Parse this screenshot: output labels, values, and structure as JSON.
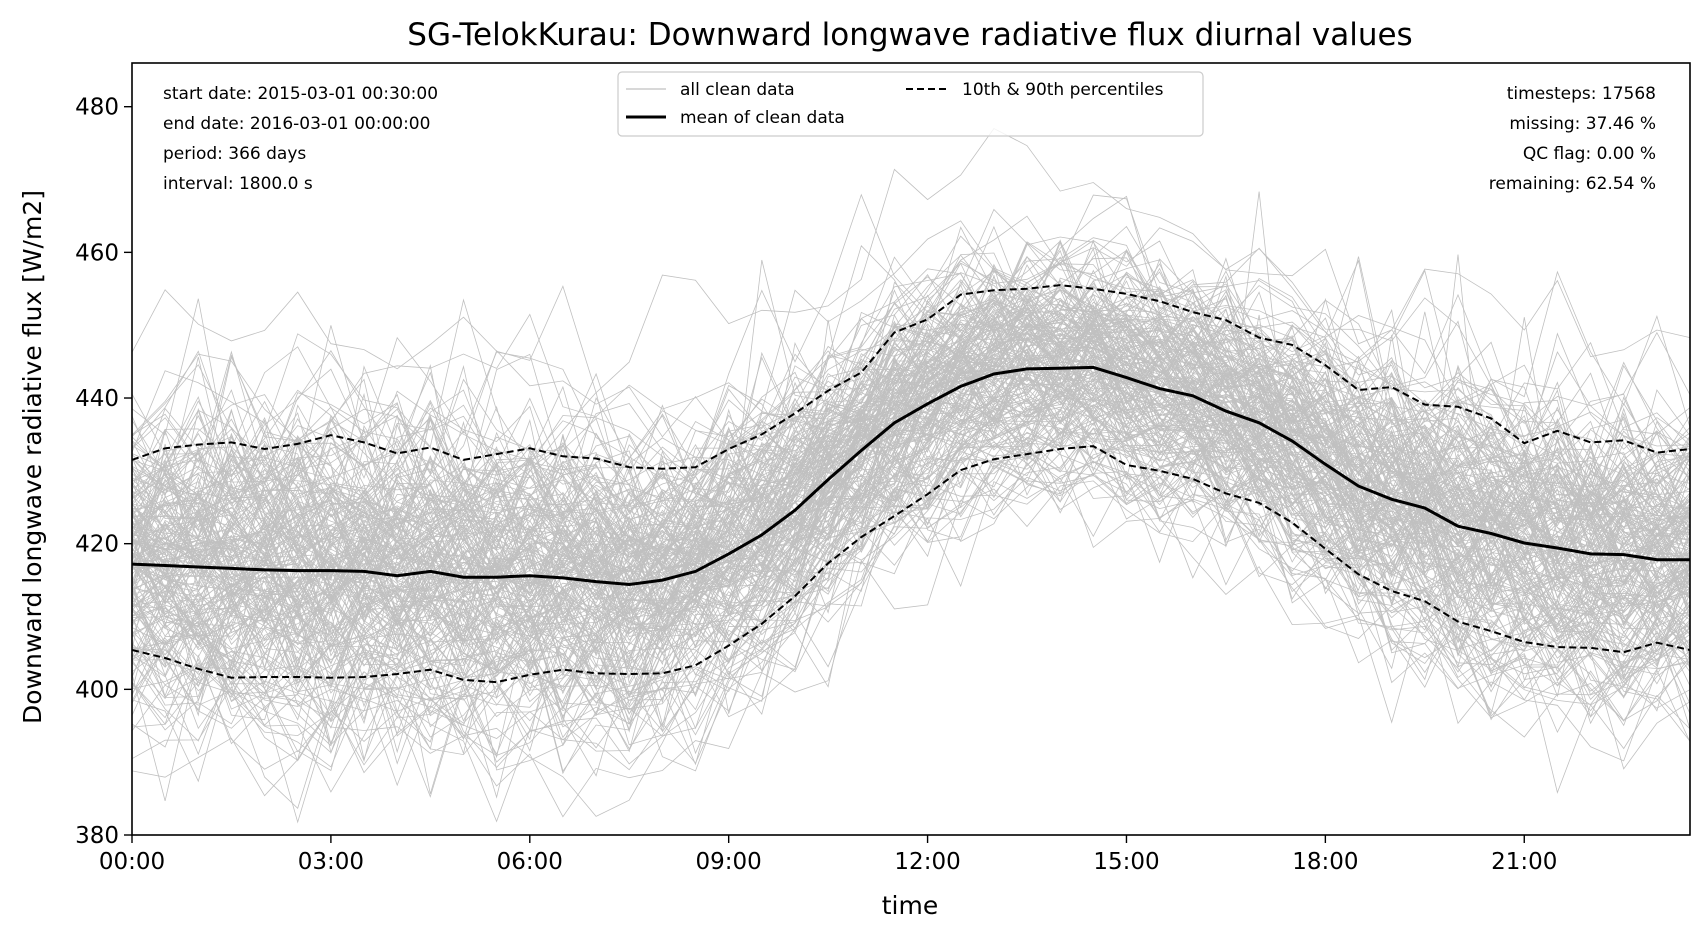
{
  "chart_data": {
    "type": "line",
    "title": "SG-TelokKurau: Downward longwave radiative flux diurnal values",
    "xlabel": "time",
    "ylabel": "Downward longwave radiative flux [W/m2]",
    "xlim_hours": [
      0,
      23.5
    ],
    "ylim": [
      380,
      486
    ],
    "x_ticks": [
      {
        "hour": 0,
        "label": "00:00"
      },
      {
        "hour": 3,
        "label": "03:00"
      },
      {
        "hour": 6,
        "label": "06:00"
      },
      {
        "hour": 9,
        "label": "09:00"
      },
      {
        "hour": 12,
        "label": "12:00"
      },
      {
        "hour": 15,
        "label": "15:00"
      },
      {
        "hour": 18,
        "label": "18:00"
      },
      {
        "hour": 21,
        "label": "21:00"
      }
    ],
    "y_ticks": [
      {
        "value": 380,
        "label": "380"
      },
      {
        "value": 400,
        "label": "400"
      },
      {
        "value": 420,
        "label": "420"
      },
      {
        "value": 440,
        "label": "440"
      },
      {
        "value": 460,
        "label": "460"
      },
      {
        "value": 480,
        "label": "480"
      }
    ],
    "grid": false,
    "legend_placement": "top-center",
    "legend": [
      {
        "label": "all clean data",
        "style": "thin-gray"
      },
      {
        "label": "10th & 90th percentiles",
        "style": "dashed-black"
      },
      {
        "label": "mean of clean data",
        "style": "solid-black"
      }
    ],
    "info_left": [
      "start date: 2015-03-01 00:30:00",
      "end date: 2016-03-01 00:00:00",
      "period: 366 days",
      "interval: 1800.0 s"
    ],
    "info_right": [
      "timesteps: 17568",
      "missing: 37.46 %",
      "QC flag: 0.00 %",
      "remaining: 62.54 %"
    ],
    "x": [
      0,
      0.5,
      1,
      1.5,
      2,
      2.5,
      3,
      3.5,
      4,
      4.5,
      5,
      5.5,
      6,
      6.5,
      7,
      7.5,
      8,
      8.5,
      9,
      9.5,
      10,
      10.5,
      11,
      11.5,
      12,
      12.5,
      13,
      13.5,
      14,
      14.5,
      15,
      15.5,
      16,
      16.5,
      17,
      17.5,
      18,
      18.5,
      19,
      19.5,
      20,
      20.5,
      21,
      21.5,
      22,
      22.5,
      23,
      23.5
    ],
    "series": [
      {
        "name": "mean of clean data",
        "values": [
          417.2,
          417.0,
          416.8,
          416.6,
          416.4,
          416.3,
          416.3,
          416.2,
          415.6,
          416.2,
          415.4,
          415.4,
          415.6,
          415.3,
          414.8,
          414.4,
          415.0,
          416.2,
          418.6,
          421.2,
          424.6,
          428.8,
          432.8,
          436.6,
          439.2,
          441.6,
          443.3,
          444.0,
          444.1,
          444.2,
          442.8,
          441.3,
          440.3,
          438.2,
          436.6,
          434.1,
          430.9,
          427.9,
          426.1,
          424.9,
          422.4,
          421.4,
          420.1,
          419.4,
          418.6,
          418.5,
          417.8,
          417.8
        ],
        "color": "#000000"
      },
      {
        "name": "10th & 90th percentiles",
        "values": [
          431.5,
          433.1,
          433.6,
          433.9,
          433.0,
          433.7,
          434.9,
          433.9,
          432.4,
          433.2,
          431.5,
          432.3,
          433.1,
          432.0,
          431.7,
          430.5,
          430.3,
          430.5,
          433.0,
          435.0,
          437.9,
          441.0,
          443.5,
          449.0,
          450.8,
          454.2,
          454.8,
          455.0,
          455.5,
          455.0,
          454.3,
          453.3,
          451.8,
          450.7,
          448.3,
          447.3,
          444.5,
          441.1,
          441.5,
          439.1,
          438.8,
          437.2,
          433.8,
          435.5,
          433.9,
          434.2,
          432.5,
          433.0
        ],
        "color": "#000000"
      },
      {
        "name": "10th & 90th percentiles",
        "values": [
          405.4,
          404.3,
          402.8,
          401.6,
          401.7,
          401.7,
          401.6,
          401.7,
          402.1,
          402.7,
          401.3,
          401.0,
          402.0,
          402.7,
          402.2,
          402.1,
          402.2,
          403.3,
          406.0,
          409.0,
          412.8,
          417.3,
          420.9,
          423.8,
          426.8,
          430.1,
          431.6,
          432.3,
          433.0,
          433.4,
          430.8,
          430.0,
          428.9,
          426.9,
          425.6,
          422.9,
          419.3,
          415.8,
          413.5,
          412.1,
          409.3,
          408.0,
          406.5,
          405.8,
          405.7,
          405.1,
          406.4,
          405.4
        ],
        "color": "#000000"
      }
    ],
    "background_traces": {
      "name": "all clean data",
      "count": 230,
      "color": "#c0c0c0"
    }
  }
}
